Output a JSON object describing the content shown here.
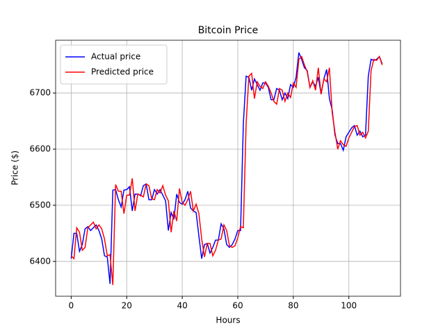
{
  "chart_data": {
    "type": "line",
    "title": "Bitcoin Price",
    "x_label": "Hours",
    "y_label": "Price ($)",
    "x": [
      0,
      1,
      2,
      3,
      4,
      5,
      6,
      7,
      8,
      9,
      10,
      11,
      12,
      13,
      14,
      15,
      16,
      17,
      18,
      19,
      20,
      21,
      22,
      23,
      24,
      25,
      26,
      27,
      28,
      29,
      30,
      31,
      32,
      33,
      34,
      35,
      36,
      37,
      38,
      39,
      40,
      41,
      42,
      43,
      44,
      45,
      46,
      47,
      48,
      49,
      50,
      51,
      52,
      53,
      54,
      55,
      56,
      57,
      58,
      59,
      60,
      61,
      62,
      63,
      64,
      65,
      66,
      67,
      68,
      69,
      70,
      71,
      72,
      73,
      74,
      75,
      76,
      77,
      78,
      79,
      80,
      81,
      82,
      83,
      84,
      85,
      86,
      87,
      88,
      89,
      90,
      91,
      92,
      93,
      94,
      95,
      96,
      97,
      98,
      99,
      100,
      101,
      102,
      103,
      104,
      105,
      106,
      107,
      108,
      109,
      110,
      111,
      112
    ],
    "series": [
      {
        "name": "Actual price",
        "color": "#0000ff",
        "values": [
          6405,
          6450,
          6450,
          6418,
          6430,
          6458,
          6462,
          6455,
          6460,
          6465,
          6455,
          6440,
          6410,
          6408,
          6360,
          6527,
          6528,
          6510,
          6497,
          6527,
          6528,
          6533,
          6490,
          6520,
          6520,
          6517,
          6535,
          6538,
          6510,
          6510,
          6528,
          6520,
          6528,
          6518,
          6508,
          6455,
          6487,
          6475,
          6520,
          6505,
          6502,
          6510,
          6525,
          6495,
          6490,
          6487,
          6445,
          6405,
          6430,
          6432,
          6415,
          6425,
          6438,
          6438,
          6467,
          6458,
          6430,
          6425,
          6430,
          6440,
          6455,
          6455,
          6645,
          6730,
          6728,
          6705,
          6725,
          6715,
          6705,
          6718,
          6718,
          6710,
          6688,
          6688,
          6708,
          6705,
          6688,
          6700,
          6690,
          6715,
          6710,
          6728,
          6772,
          6760,
          6745,
          6740,
          6710,
          6720,
          6712,
          6728,
          6698,
          6725,
          6742,
          6690,
          6670,
          6625,
          6610,
          6610,
          6598,
          6622,
          6630,
          6638,
          6642,
          6625,
          6632,
          6622,
          6625,
          6730,
          6760,
          6758,
          6760,
          6765,
          6752
        ]
      },
      {
        "name": "Predicted price",
        "color": "#ff0000",
        "values": [
          6410,
          6405,
          6460,
          6452,
          6420,
          6425,
          6460,
          6465,
          6470,
          6458,
          6465,
          6458,
          6440,
          6410,
          6412,
          6358,
          6537,
          6525,
          6525,
          6485,
          6518,
          6518,
          6548,
          6490,
          6520,
          6518,
          6515,
          6538,
          6535,
          6512,
          6510,
          6528,
          6522,
          6535,
          6518,
          6508,
          6452,
          6490,
          6472,
          6530,
          6505,
          6500,
          6510,
          6525,
          6490,
          6502,
          6485,
          6440,
          6408,
          6432,
          6432,
          6410,
          6420,
          6438,
          6440,
          6465,
          6455,
          6428,
          6425,
          6428,
          6442,
          6462,
          6460,
          6645,
          6730,
          6735,
          6690,
          6720,
          6712,
          6708,
          6720,
          6712,
          6700,
          6685,
          6680,
          6708,
          6705,
          6685,
          6700,
          6692,
          6718,
          6710,
          6760,
          6765,
          6750,
          6738,
          6710,
          6722,
          6705,
          6745,
          6698,
          6725,
          6720,
          6745,
          6665,
          6630,
          6600,
          6615,
          6608,
          6605,
          6620,
          6630,
          6640,
          6642,
          6625,
          6630,
          6620,
          6632,
          6740,
          6760,
          6758,
          6765,
          6750
        ]
      }
    ],
    "xlim": [
      -5.6,
      118.6
    ],
    "ylim": [
      6338,
      6794
    ],
    "xticks": [
      0,
      20,
      40,
      60,
      80,
      100
    ],
    "yticks": [
      6400,
      6500,
      6600,
      6700
    ],
    "grid": true,
    "legend": "upper-left"
  }
}
